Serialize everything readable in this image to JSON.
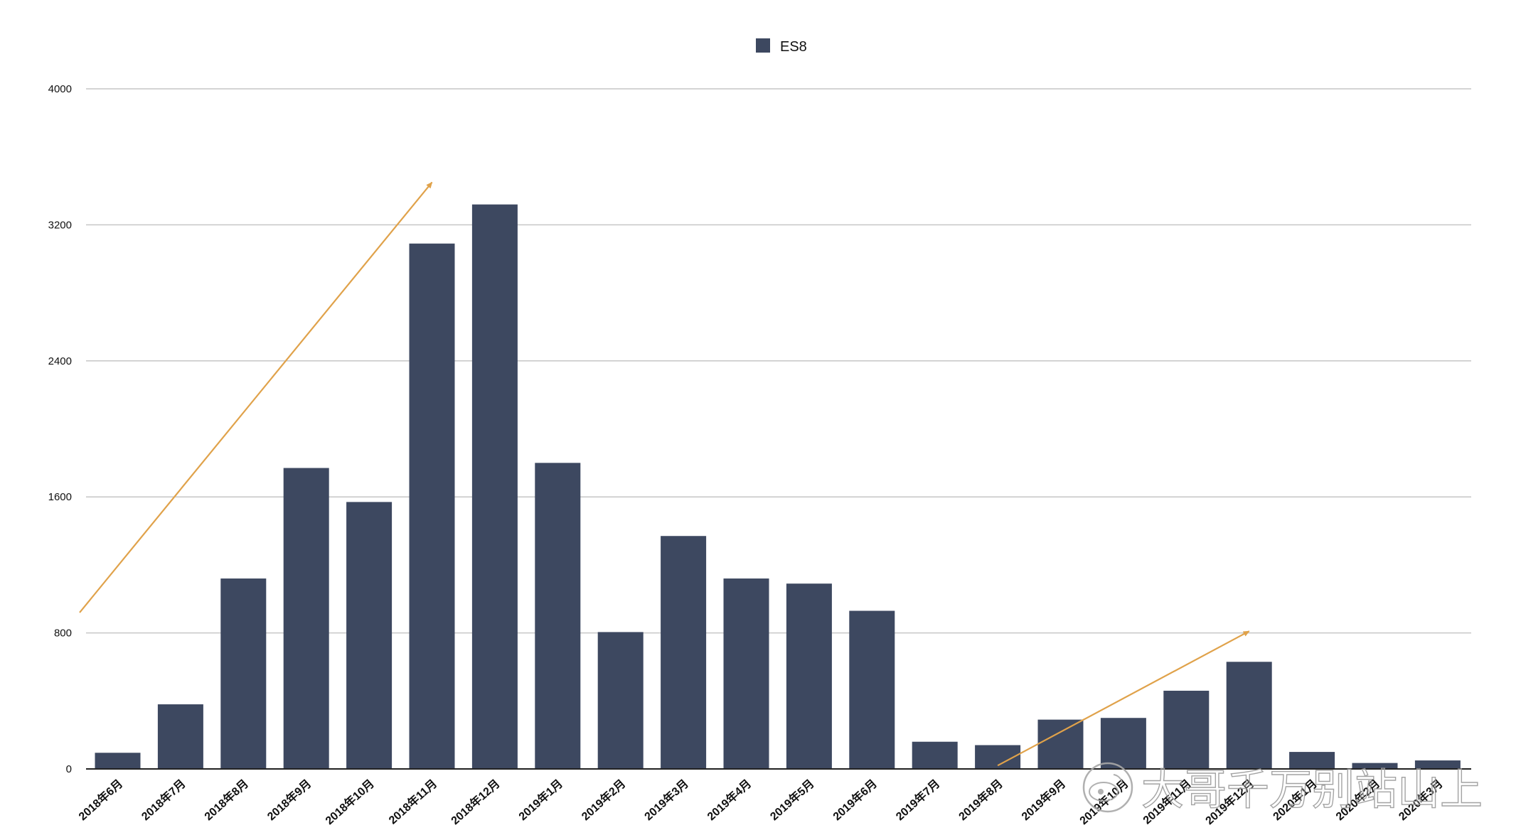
{
  "chart_data": {
    "type": "bar",
    "categories": [
      "2018年6月",
      "2018年7月",
      "2018年8月",
      "2018年9月",
      "2018年10月",
      "2018年11月",
      "2018年12月",
      "2019年1月",
      "2019年2月",
      "2019年3月",
      "2019年4月",
      "2019年5月",
      "2019年6月",
      "2019年7月",
      "2019年8月",
      "2019年9月",
      "2019年10月",
      "2019年11月",
      "2019年12月",
      "2020年1月",
      "2020年2月",
      "2020年3月"
    ],
    "series": [
      {
        "name": "ES8",
        "values": [
          95,
          380,
          1120,
          1770,
          1570,
          3090,
          3320,
          1800,
          805,
          1370,
          1120,
          1090,
          930,
          160,
          140,
          290,
          300,
          460,
          630,
          100,
          35,
          50
        ]
      }
    ],
    "ylim": [
      0,
      4000
    ],
    "yticks": [
      0,
      800,
      1600,
      2400,
      3200,
      4000
    ],
    "grid": true,
    "legend_position": "top-center",
    "title": "",
    "xlabel": "",
    "ylabel": "",
    "annotations": [
      {
        "type": "arrow",
        "from": {
          "x": "2018年6月",
          "y": 920
        },
        "to": {
          "x": "2018年11月",
          "y": 3450
        }
      },
      {
        "type": "arrow",
        "from": {
          "x": "2019年8月",
          "y": 20
        },
        "to": {
          "x": "2019年12月",
          "y": 810
        }
      }
    ]
  },
  "colors": {
    "bar": "#3d4860",
    "grid": "#c6c6c6",
    "axis": "#222222",
    "annotation_arrow": "#e0a24a"
  },
  "watermark": {
    "text": "大哥千万别站山上",
    "icon": "weibo-logo-icon"
  }
}
